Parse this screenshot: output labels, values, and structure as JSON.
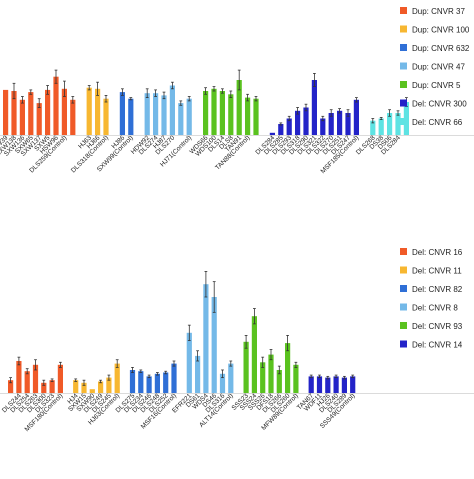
{
  "chart_data": [
    {
      "type": "bar",
      "panel": "top",
      "legend": [
        {
          "label": "Dup: CNVR 37",
          "color": "#f05a28"
        },
        {
          "label": "Dup: CNVR 100",
          "color": "#f7b731"
        },
        {
          "label": "Dup: CNVR 632",
          "color": "#2f6fd6"
        },
        {
          "label": "Dup: CNVR 47",
          "color": "#74b9e8"
        },
        {
          "label": "Dup: CNVR 5",
          "color": "#5ac21f"
        },
        {
          "label": "Del: CNVR 300",
          "color": "#2323c8"
        },
        {
          "label": "Del: CNVR 66",
          "color": "#5ee3e3"
        }
      ],
      "ylim": [
        0,
        1.0
      ],
      "groups": [
        {
          "color": "#f05a28",
          "bars": [
            {
              "label": "SW39",
              "value": 0.41,
              "err": 0.0
            },
            {
              "label": "SXW138",
              "value": 0.4,
              "err": 0.07
            },
            {
              "label": "SXW136",
              "value": 0.32,
              "err": 0.03
            },
            {
              "label": "SXW65",
              "value": 0.39,
              "err": 0.02
            },
            {
              "label": "SXW137",
              "value": 0.29,
              "err": 0.04
            },
            {
              "label": "SXW5",
              "value": 0.41,
              "err": 0.04
            },
            {
              "label": "HSW96",
              "value": 0.53,
              "err": 0.06
            },
            {
              "label": "DLS259(Control)",
              "value": 0.42,
              "err": 0.07
            },
            {
              "label": "",
              "value": 0.32,
              "err": 0.03
            }
          ]
        },
        {
          "color": "#f7b731",
          "bars": [
            {
              "label": "HJ63",
              "value": 0.43,
              "err": 0.02
            },
            {
              "label": "HJ66",
              "value": 0.42,
              "err": 0.06
            },
            {
              "label": "DLS318(Control)",
              "value": 0.33,
              "err": 0.03
            }
          ]
        },
        {
          "color": "#2f6fd6",
          "bars": [
            {
              "label": "HJ86",
              "value": 0.39,
              "err": 0.03
            },
            {
              "label": "SXW99(Control)",
              "value": 0.33,
              "err": 0.01
            }
          ]
        },
        {
          "color": "#74b9e8",
          "bars": [
            {
              "label": "HDW92",
              "value": 0.38,
              "err": 0.04
            },
            {
              "label": "DLS274",
              "value": 0.38,
              "err": 0.03
            },
            {
              "label": "HJ87",
              "value": 0.36,
              "err": 0.03
            },
            {
              "label": "DLS270",
              "value": 0.45,
              "err": 0.03
            },
            {
              "label": "",
              "value": 0.29,
              "err": 0.02
            },
            {
              "label": "HJ71(Control)",
              "value": 0.33,
              "err": 0.02
            }
          ]
        },
        {
          "color": "#5ac21f",
          "bars": [
            {
              "label": "WDS66",
              "value": 0.4,
              "err": 0.03
            },
            {
              "label": "WDS100",
              "value": 0.42,
              "err": 0.02
            },
            {
              "label": "DLS14",
              "value": 0.4,
              "err": 0.02
            },
            {
              "label": "DLS8",
              "value": 0.37,
              "err": 0.03
            },
            {
              "label": "TAN91",
              "value": 0.5,
              "err": 0.09
            },
            {
              "label": "TAN88(Control)",
              "value": 0.34,
              "err": 0.03
            },
            {
              "label": "",
              "value": 0.33,
              "err": 0.02
            }
          ]
        },
        {
          "color": "#2323c8",
          "bars": [
            {
              "label": "DLS284",
              "value": 0.02,
              "err": 0.0
            },
            {
              "label": "DLS285",
              "value": 0.1,
              "err": 0.01
            },
            {
              "label": "DLS293",
              "value": 0.15,
              "err": 0.02
            },
            {
              "label": "DLS318",
              "value": 0.22,
              "err": 0.03
            },
            {
              "label": "DLS290",
              "value": 0.25,
              "err": 0.03
            },
            {
              "label": "DLS321",
              "value": 0.5,
              "err": 0.06
            },
            {
              "label": "DLS322",
              "value": 0.15,
              "err": 0.02
            },
            {
              "label": "DLS270",
              "value": 0.2,
              "err": 0.03
            },
            {
              "label": "DLS251",
              "value": 0.22,
              "err": 0.02
            },
            {
              "label": "DLS247",
              "value": 0.2,
              "err": 0.03
            },
            {
              "label": "MSF185(Control)",
              "value": 0.32,
              "err": 0.02
            }
          ]
        },
        {
          "color": "#5ee3e3",
          "bars": [
            {
              "label": "DLS268",
              "value": 0.13,
              "err": 0.02
            },
            {
              "label": "DS38",
              "value": 0.15,
              "err": 0.01
            },
            {
              "label": "DS06",
              "value": 0.2,
              "err": 0.03
            },
            {
              "label": "DLS284",
              "value": 0.2,
              "err": 0.02
            },
            {
              "label": "",
              "value": 0.3,
              "err": 0.04
            }
          ]
        }
      ]
    },
    {
      "type": "bar",
      "panel": "bottom",
      "legend": [
        {
          "label": "Del: CNVR 16",
          "color": "#f05a28"
        },
        {
          "label": "Del: CNVR 11",
          "color": "#f7b731"
        },
        {
          "label": "Del: CNVR 82",
          "color": "#2f6fd6"
        },
        {
          "label": "Del: CNVR 8",
          "color": "#74b9e8"
        },
        {
          "label": "Del: CNVR 93",
          "color": "#5ac21f"
        },
        {
          "label": "Del: CNVR 14",
          "color": "#2323c8"
        }
      ],
      "ylim": [
        0,
        1.0
      ],
      "groups": [
        {
          "color": "#f05a28",
          "bars": [
            {
              "label": "",
              "value": 0.1,
              "err": 0.02
            },
            {
              "label": "DLS244",
              "value": 0.25,
              "err": 0.03
            },
            {
              "label": "DLS254",
              "value": 0.17,
              "err": 0.02
            },
            {
              "label": "DLS263",
              "value": 0.22,
              "err": 0.04
            },
            {
              "label": "DLS300",
              "value": 0.08,
              "err": 0.02
            },
            {
              "label": "DLS323",
              "value": 0.1,
              "err": 0.01
            },
            {
              "label": "MSF180(Control)",
              "value": 0.22,
              "err": 0.02
            }
          ]
        },
        {
          "color": "#f7b731",
          "bars": [
            {
              "label": "HJ4",
              "value": 0.1,
              "err": 0.01
            },
            {
              "label": "SXW15",
              "value": 0.08,
              "err": 0.02
            },
            {
              "label": "SXW90",
              "value": 0.03,
              "err": 0.0
            },
            {
              "label": "DLS249",
              "value": 0.09,
              "err": 0.01
            },
            {
              "label": "DLS245",
              "value": 0.12,
              "err": 0.02
            },
            {
              "label": "HJ63(Control)",
              "value": 0.23,
              "err": 0.03
            }
          ]
        },
        {
          "color": "#2f6fd6",
          "bars": [
            {
              "label": "DLS275",
              "value": 0.18,
              "err": 0.02
            },
            {
              "label": "DLS234",
              "value": 0.17,
              "err": 0.01
            },
            {
              "label": "DLS246",
              "value": 0.13,
              "err": 0.01
            },
            {
              "label": "DLS248",
              "value": 0.15,
              "err": 0.01
            },
            {
              "label": "DLS252",
              "value": 0.16,
              "err": 0.01
            },
            {
              "label": "MSF16(Control)",
              "value": 0.23,
              "err": 0.02
            }
          ]
        },
        {
          "color": "#74b9e8",
          "bars": [
            {
              "label": "EFR221",
              "value": 0.47,
              "err": 0.06
            },
            {
              "label": "DS61",
              "value": 0.29,
              "err": 0.04
            },
            {
              "label": "WDS4",
              "value": 0.85,
              "err": 0.1
            },
            {
              "label": "DS46",
              "value": 0.75,
              "err": 0.12
            },
            {
              "label": "DLS316",
              "value": 0.15,
              "err": 0.03
            },
            {
              "label": "ALT14(Control)",
              "value": 0.23,
              "err": 0.02
            }
          ]
        },
        {
          "color": "#5ac21f",
          "bars": [
            {
              "label": "SSS23",
              "value": 0.4,
              "err": 0.05
            },
            {
              "label": "SSS24",
              "value": 0.6,
              "err": 0.06
            },
            {
              "label": "SSS26",
              "value": 0.24,
              "err": 0.04
            },
            {
              "label": "DFS18",
              "value": 0.3,
              "err": 0.04
            },
            {
              "label": "DLS266",
              "value": 0.18,
              "err": 0.03
            },
            {
              "label": "DLS260",
              "value": 0.39,
              "err": 0.06
            },
            {
              "label": "MFW89(Control)",
              "value": 0.22,
              "err": 0.02
            }
          ]
        },
        {
          "color": "#2323c8",
          "bars": [
            {
              "label": "TAN67",
              "value": 0.13,
              "err": 0.01
            },
            {
              "label": "WDF11",
              "value": 0.13,
              "err": 0.01
            },
            {
              "label": "HJ26",
              "value": 0.12,
              "err": 0.01
            },
            {
              "label": "DLS240",
              "value": 0.13,
              "err": 0.01
            },
            {
              "label": "DLS289",
              "value": 0.12,
              "err": 0.01
            },
            {
              "label": "SSS49(Control)",
              "value": 0.13,
              "err": 0.01
            }
          ]
        }
      ]
    }
  ]
}
